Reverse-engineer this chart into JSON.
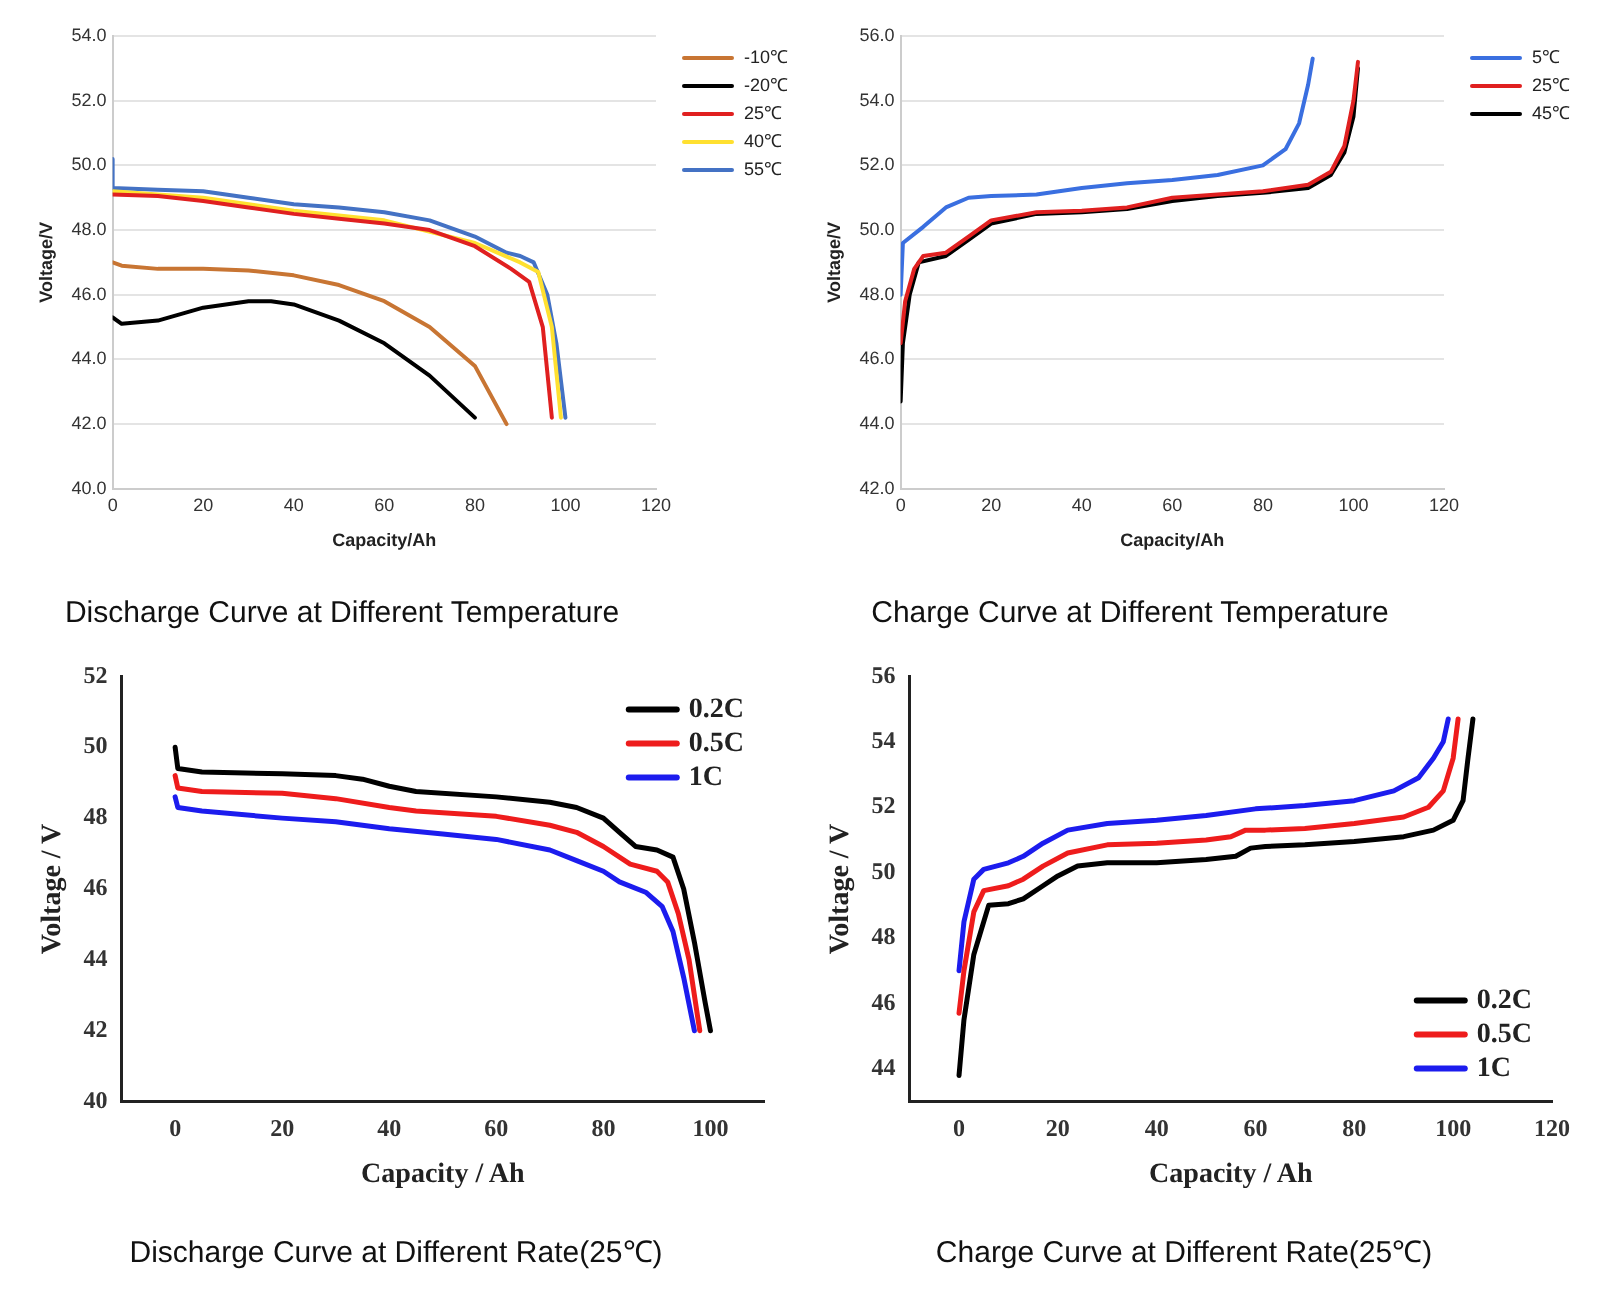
{
  "chart_data": [
    {
      "type": "line",
      "title": "Discharge Curve at Different Temperature",
      "xlabel": "Capacity/Ah",
      "ylabel": "Voltage/V",
      "xlim": [
        0,
        120
      ],
      "xticks": [
        0,
        20,
        40,
        60,
        80,
        100,
        120
      ],
      "ylim": [
        40,
        54
      ],
      "yticks": [
        {
          "value": 40,
          "label": "40.0"
        },
        {
          "value": 42,
          "label": "42.0"
        },
        {
          "value": 44,
          "label": "44.0"
        },
        {
          "value": 46,
          "label": "46.0"
        },
        {
          "value": 48,
          "label": "48.0"
        },
        {
          "value": 50,
          "label": "50.0"
        },
        {
          "value": 52,
          "label": "52.0"
        },
        {
          "value": 54,
          "label": "54.0"
        }
      ],
      "grid": "y",
      "legend": "right",
      "marker": "none",
      "line_style": "solid",
      "series": [
        {
          "name": "-10℃",
          "color": "#c87533",
          "x": [
            0,
            2,
            10,
            20,
            30,
            40,
            50,
            60,
            70,
            80,
            87
          ],
          "values": [
            47.0,
            46.9,
            46.8,
            46.8,
            46.75,
            46.6,
            46.3,
            45.8,
            45.0,
            43.8,
            42.0
          ]
        },
        {
          "name": "-20℃",
          "color": "#000000",
          "x": [
            0,
            2,
            10,
            20,
            30,
            35,
            40,
            50,
            60,
            70,
            80
          ],
          "values": [
            45.3,
            45.1,
            45.2,
            45.6,
            45.8,
            45.8,
            45.7,
            45.2,
            44.5,
            43.5,
            42.2
          ]
        },
        {
          "name": "25℃",
          "color": "#e02020",
          "x": [
            0,
            10,
            20,
            30,
            40,
            50,
            60,
            70,
            80,
            88,
            92,
            95,
            97
          ],
          "values": [
            49.1,
            49.05,
            48.9,
            48.7,
            48.5,
            48.35,
            48.2,
            48.0,
            47.5,
            46.8,
            46.4,
            45.0,
            42.2
          ]
        },
        {
          "name": "40℃",
          "color": "#ffe030",
          "x": [
            0,
            20,
            40,
            60,
            80,
            90,
            94,
            97,
            99
          ],
          "values": [
            49.2,
            49.0,
            48.6,
            48.3,
            47.6,
            47.0,
            46.7,
            45.0,
            42.2
          ]
        },
        {
          "name": "55℃",
          "color": "#4472c4",
          "x": [
            0,
            0,
            10,
            20,
            30,
            40,
            50,
            60,
            70,
            80,
            87,
            90,
            93,
            96,
            98,
            100
          ],
          "values": [
            50.2,
            49.3,
            49.25,
            49.2,
            49.0,
            48.8,
            48.7,
            48.55,
            48.3,
            47.8,
            47.3,
            47.2,
            47.0,
            46.0,
            44.5,
            42.2
          ]
        }
      ]
    },
    {
      "type": "line",
      "title": "Charge Curve at Different Temperature",
      "xlabel": "Capacity/Ah",
      "ylabel": "Voltage/V",
      "xlim": [
        0,
        120
      ],
      "xticks": [
        0,
        20,
        40,
        60,
        80,
        100,
        120
      ],
      "ylim": [
        42,
        56
      ],
      "yticks": [
        {
          "value": 42,
          "label": "42.0"
        },
        {
          "value": 44,
          "label": "44.0"
        },
        {
          "value": 46,
          "label": "46.0"
        },
        {
          "value": 48,
          "label": "48.0"
        },
        {
          "value": 50,
          "label": "50.0"
        },
        {
          "value": 52,
          "label": "52.0"
        },
        {
          "value": 54,
          "label": "54.0"
        },
        {
          "value": 56,
          "label": "56.0"
        }
      ],
      "grid": "y",
      "legend": "right",
      "marker": "none",
      "line_style": "solid",
      "series": [
        {
          "name": "5℃",
          "color": "#3a6fe0",
          "x": [
            0,
            0.5,
            5,
            10,
            15,
            20,
            30,
            40,
            50,
            60,
            70,
            80,
            85,
            88,
            90,
            91
          ],
          "values": [
            48.0,
            49.6,
            50.1,
            50.7,
            51.0,
            51.05,
            51.1,
            51.3,
            51.45,
            51.55,
            51.7,
            52.0,
            52.5,
            53.3,
            54.5,
            55.3
          ]
        },
        {
          "name": "25℃",
          "color": "#e02020",
          "x": [
            0,
            1,
            3,
            5,
            10,
            15,
            20,
            30,
            40,
            50,
            60,
            70,
            80,
            90,
            95,
            98,
            100,
            101
          ],
          "values": [
            46.5,
            47.8,
            48.8,
            49.2,
            49.3,
            49.8,
            50.3,
            50.55,
            50.6,
            50.7,
            51.0,
            51.1,
            51.2,
            51.4,
            51.8,
            52.6,
            54.0,
            55.2
          ]
        },
        {
          "name": "45℃",
          "color": "#000000",
          "x": [
            0,
            0.5,
            2,
            4,
            10,
            15,
            20,
            30,
            40,
            50,
            60,
            70,
            80,
            90,
            95,
            98,
            100,
            101
          ],
          "values": [
            44.7,
            46.5,
            48.0,
            49.0,
            49.2,
            49.7,
            50.2,
            50.5,
            50.55,
            50.65,
            50.9,
            51.05,
            51.15,
            51.3,
            51.7,
            52.4,
            53.5,
            55.0
          ]
        }
      ]
    },
    {
      "type": "line",
      "title": "Discharge Curve at Different Rate(25℃)",
      "xlabel": "Capacity / Ah",
      "ylabel": "Voltage / V",
      "xlim": [
        -10,
        110
      ],
      "xticks": [
        0,
        20,
        40,
        60,
        80,
        100
      ],
      "ylim": [
        40,
        52
      ],
      "yticks": [
        40,
        42,
        44,
        46,
        48,
        50,
        52
      ],
      "legend": "top right",
      "marker": "none",
      "line_style": "solid",
      "series": [
        {
          "name": "0.2C",
          "color": "#000000",
          "x": [
            0,
            0.5,
            5,
            20,
            30,
            35,
            40,
            45,
            60,
            70,
            75,
            80,
            83,
            86,
            90,
            93,
            95,
            97,
            99,
            100
          ],
          "values": [
            50.0,
            49.4,
            49.3,
            49.25,
            49.2,
            49.1,
            48.9,
            48.75,
            48.6,
            48.45,
            48.3,
            48.0,
            47.6,
            47.2,
            47.1,
            46.9,
            46.0,
            44.5,
            42.8,
            42.0
          ]
        },
        {
          "name": "0.5C",
          "color": "#ee1c1c",
          "x": [
            0,
            0.5,
            5,
            20,
            30,
            40,
            45,
            60,
            70,
            75,
            80,
            85,
            90,
            92,
            94,
            96,
            98
          ],
          "values": [
            49.2,
            48.85,
            48.75,
            48.7,
            48.55,
            48.3,
            48.2,
            48.05,
            47.8,
            47.6,
            47.2,
            46.7,
            46.5,
            46.2,
            45.3,
            44.0,
            42.0
          ]
        },
        {
          "name": "1C",
          "color": "#1c1cee",
          "x": [
            0,
            0.5,
            5,
            20,
            30,
            40,
            50,
            60,
            70,
            75,
            80,
            83,
            88,
            91,
            93,
            95,
            97
          ],
          "values": [
            48.6,
            48.3,
            48.2,
            48.0,
            47.9,
            47.7,
            47.55,
            47.4,
            47.1,
            46.8,
            46.5,
            46.2,
            45.9,
            45.5,
            44.8,
            43.5,
            42.0
          ]
        }
      ]
    },
    {
      "type": "line",
      "title": "Charge Curve at Different Rate(25℃)",
      "xlabel": "Capacity / Ah",
      "ylabel": "Voltage / V",
      "xlim": [
        -10,
        120
      ],
      "xticks": [
        0,
        20,
        40,
        60,
        80,
        100,
        120
      ],
      "ylim": [
        43,
        56
      ],
      "yticks": [
        44,
        46,
        48,
        50,
        52,
        54,
        56
      ],
      "legend": "bottom right",
      "marker": "none",
      "line_style": "solid",
      "series": [
        {
          "name": "0.2C",
          "color": "#000000",
          "x": [
            0,
            1,
            3,
            6,
            10,
            13,
            17,
            20,
            24,
            30,
            40,
            50,
            56,
            59,
            62,
            70,
            80,
            90,
            96,
            100,
            102,
            103,
            104
          ],
          "values": [
            43.8,
            45.5,
            47.5,
            49.0,
            49.05,
            49.2,
            49.6,
            49.9,
            50.2,
            50.3,
            50.3,
            50.4,
            50.5,
            50.75,
            50.8,
            50.85,
            50.95,
            51.1,
            51.3,
            51.6,
            52.2,
            53.5,
            54.7
          ]
        },
        {
          "name": "0.5C",
          "color": "#ee1c1c",
          "x": [
            0,
            1,
            3,
            5,
            10,
            13,
            17,
            22,
            30,
            40,
            50,
            55,
            58,
            62,
            70,
            80,
            90,
            95,
            98,
            100,
            101
          ],
          "values": [
            45.7,
            47.0,
            48.8,
            49.45,
            49.6,
            49.8,
            50.2,
            50.6,
            50.85,
            50.9,
            51.0,
            51.1,
            51.3,
            51.3,
            51.35,
            51.5,
            51.7,
            52.0,
            52.5,
            53.5,
            54.7
          ]
        },
        {
          "name": "1C",
          "color": "#1c1cee",
          "x": [
            0,
            1,
            3,
            5,
            10,
            13,
            17,
            22,
            30,
            40,
            50,
            60,
            70,
            80,
            88,
            93,
            96,
            98,
            99
          ],
          "values": [
            47.0,
            48.5,
            49.8,
            50.1,
            50.3,
            50.5,
            50.9,
            51.3,
            51.5,
            51.6,
            51.75,
            51.95,
            52.05,
            52.2,
            52.5,
            52.9,
            53.5,
            54.0,
            54.7
          ]
        }
      ]
    }
  ]
}
